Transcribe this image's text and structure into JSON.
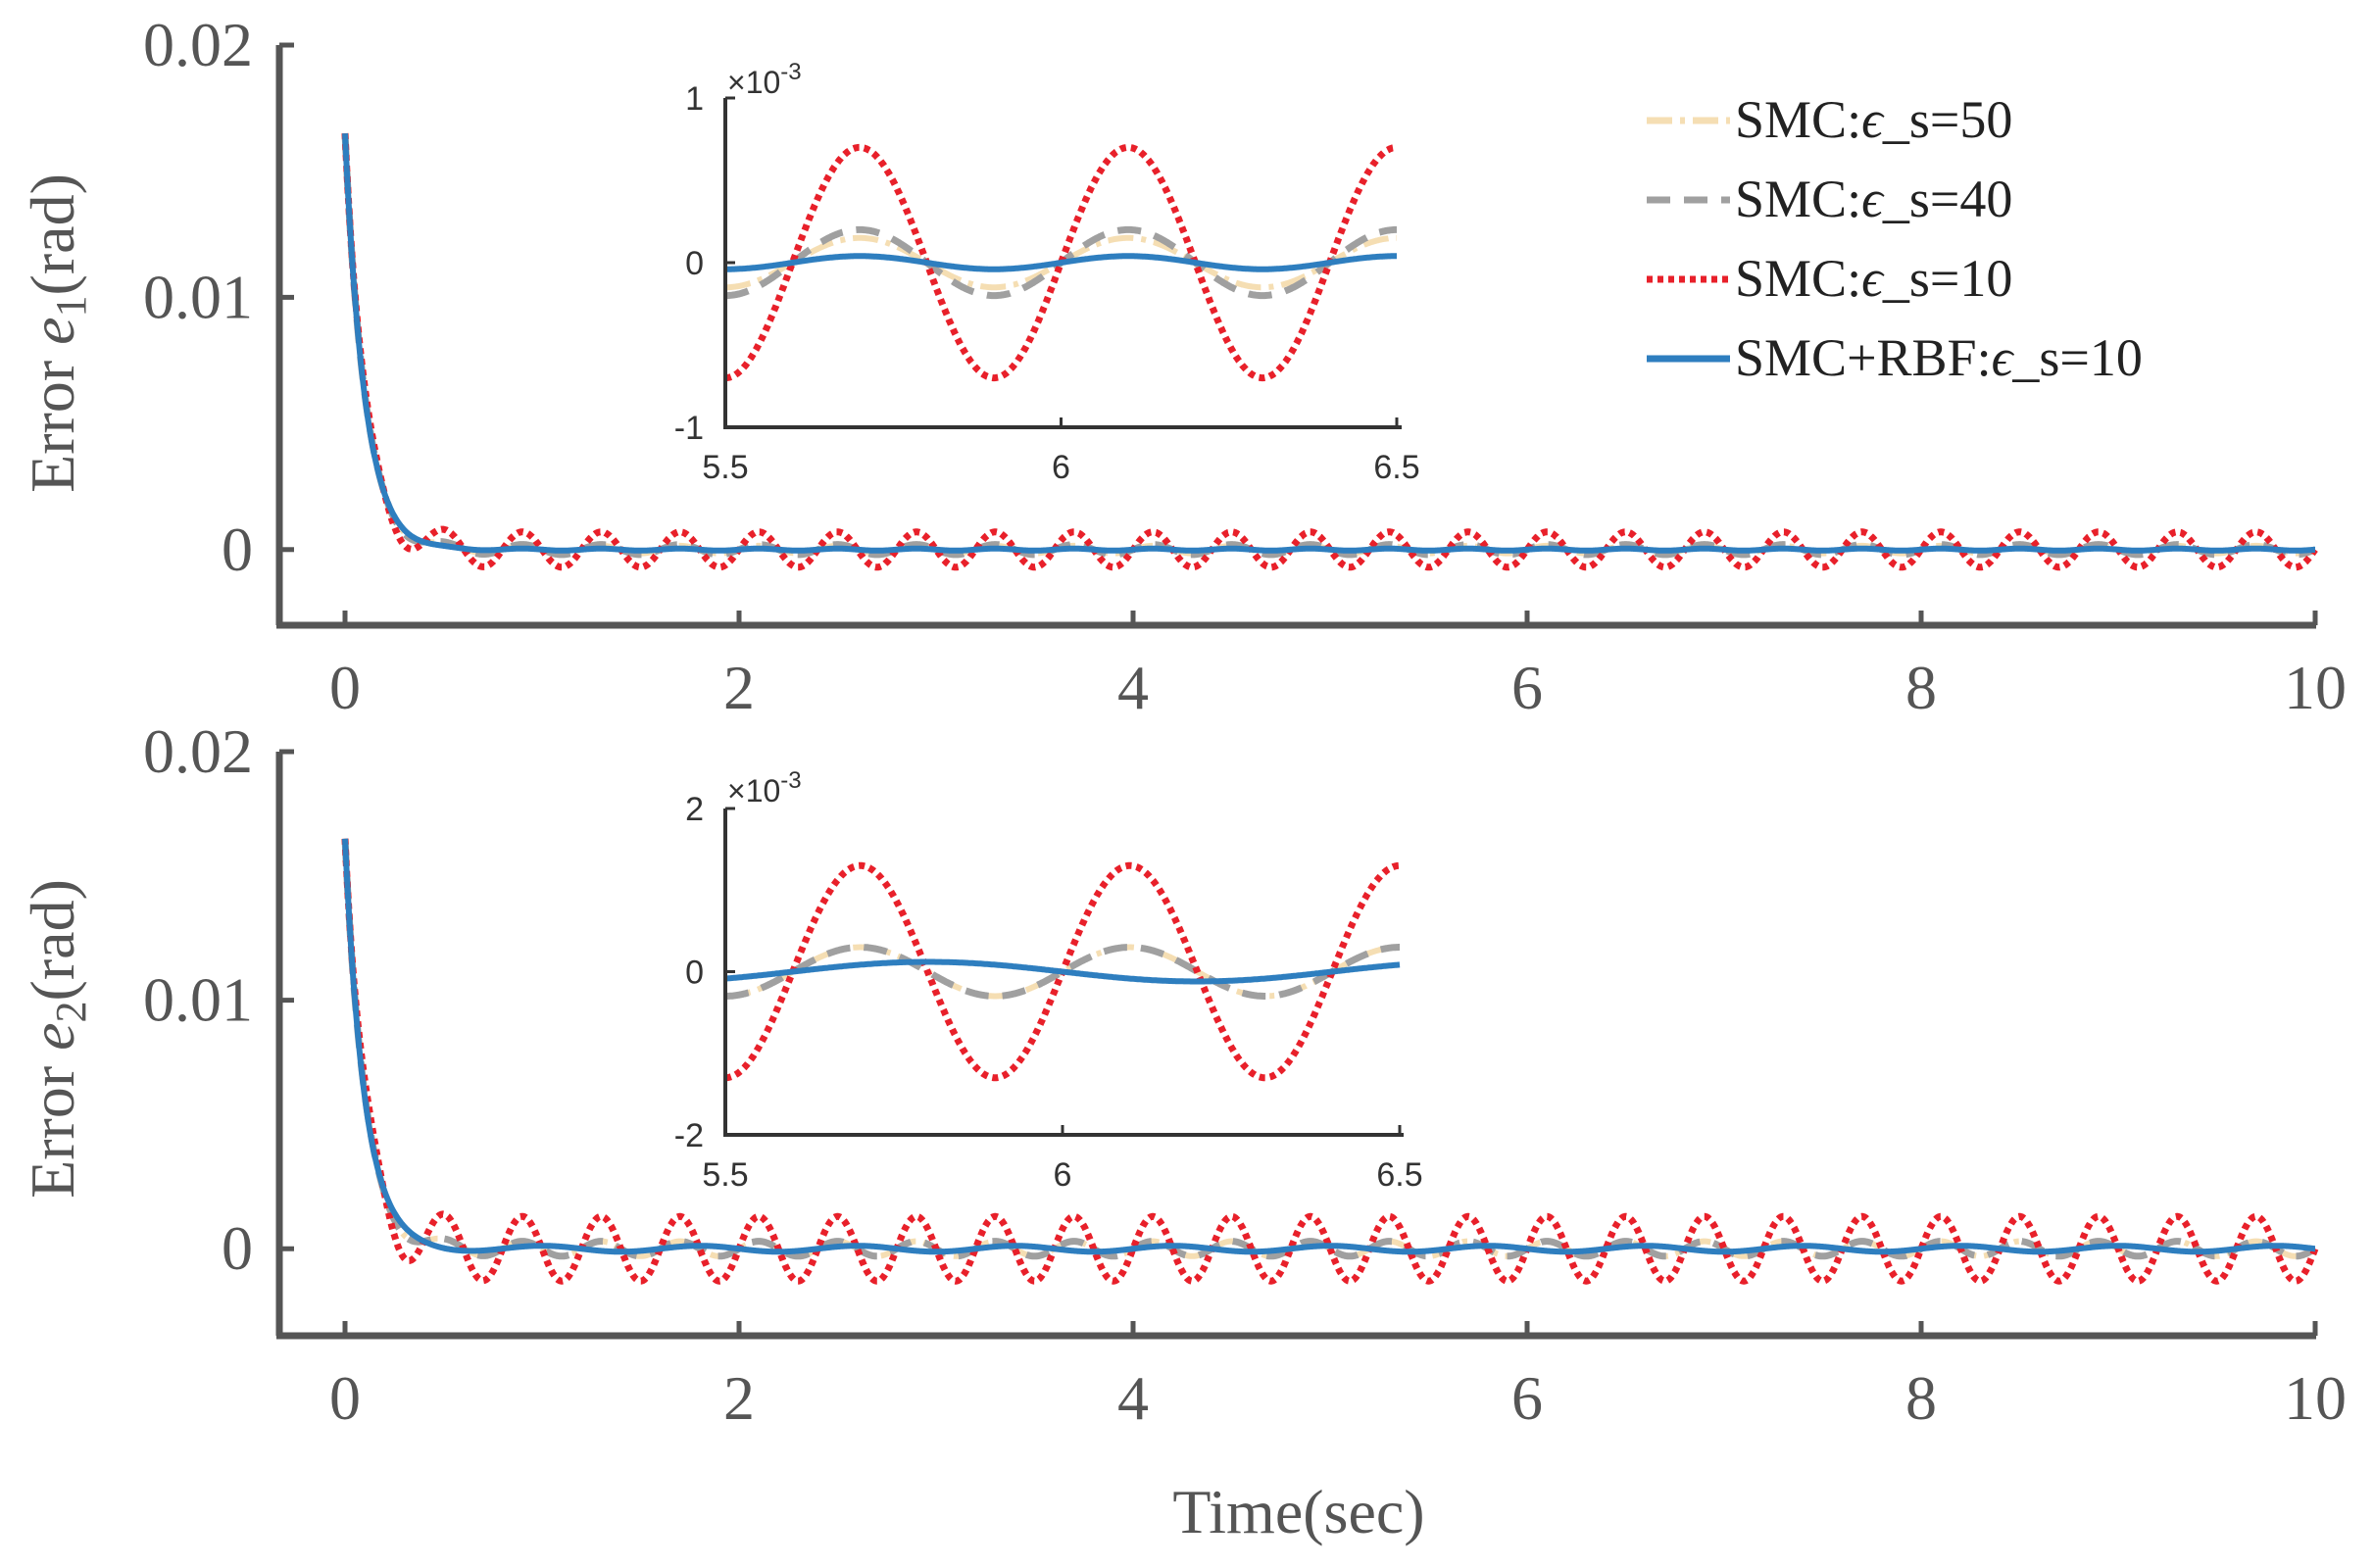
{
  "chart_data": [
    {
      "type": "line",
      "panel": "top",
      "ylabel": "Error e_1(rad)",
      "ylabel_prefix": "Error ",
      "ylabel_var": "e",
      "ylabel_sub": "1",
      "ylabel_unit": "(rad)",
      "xlabel": "",
      "xlim": [
        0,
        10
      ],
      "ylim": [
        -0.003,
        0.02
      ],
      "xticks": [
        "0",
        "2",
        "4",
        "6",
        "8",
        "10"
      ],
      "yticks": [
        "0",
        "0.01",
        "0.02"
      ],
      "grid": false,
      "legend_position": "top-right",
      "series": [
        {
          "name": "SMC:ϵ_s=50",
          "initial_error": 0.0165,
          "decay_time_constant": 0.1,
          "ripple_amplitude": 0.00015,
          "ripple_period": 0.4
        },
        {
          "name": "SMC:ϵ_s=40",
          "initial_error": 0.0165,
          "decay_time_constant": 0.1,
          "ripple_amplitude": 0.0002,
          "ripple_period": 0.4
        },
        {
          "name": "SMC:ϵ_s=10",
          "initial_error": 0.0165,
          "decay_time_constant": 0.1,
          "ripple_amplitude": 0.0007,
          "ripple_period": 0.4
        },
        {
          "name": "SMC+RBF:ϵ_s=10",
          "initial_error": 0.0165,
          "decay_time_constant": 0.1,
          "ripple_amplitude": 4e-05,
          "ripple_period": 0.4
        }
      ],
      "inset": {
        "xlim": [
          5.5,
          6.5
        ],
        "ylim": [
          -1,
          1
        ],
        "xticks": [
          "5.5",
          "6",
          "6.5"
        ],
        "yticks": [
          "-1",
          "0",
          "1"
        ],
        "exponent": "×10^-3",
        "exponent_text": "×10",
        "exponent_power": "-3"
      }
    },
    {
      "type": "line",
      "panel": "bottom",
      "ylabel": "Error e_2(rad)",
      "ylabel_prefix": "Error ",
      "ylabel_var": "e",
      "ylabel_sub": "2",
      "ylabel_unit": "(rad)",
      "xlabel": "Time(sec)",
      "xlim": [
        0,
        10
      ],
      "ylim": [
        -0.0035,
        0.02
      ],
      "xticks": [
        "0",
        "2",
        "4",
        "6",
        "8",
        "10"
      ],
      "yticks": [
        "0",
        "0.01",
        "0.02"
      ],
      "grid": false,
      "series": [
        {
          "name": "SMC:ϵ_s=50",
          "initial_error": 0.0165,
          "decay_time_constant": 0.1,
          "ripple_amplitude": 0.0003,
          "ripple_period": 0.4
        },
        {
          "name": "SMC:ϵ_s=40",
          "initial_error": 0.0165,
          "decay_time_constant": 0.1,
          "ripple_amplitude": 0.0003,
          "ripple_period": 0.4
        },
        {
          "name": "SMC:ϵ_s=10",
          "initial_error": 0.0165,
          "decay_time_constant": 0.1,
          "ripple_amplitude": 0.0013,
          "ripple_period": 0.4
        },
        {
          "name": "SMC+RBF:ϵ_s=10",
          "initial_error": 0.0165,
          "decay_time_constant": 0.1,
          "ripple_amplitude": 0.00012,
          "ripple_period": 0.8
        }
      ],
      "inset": {
        "xlim": [
          5.5,
          6.5
        ],
        "ylim": [
          -2,
          2
        ],
        "xticks": [
          "5.5",
          "6",
          "6.5"
        ],
        "yticks": [
          "-2",
          "0",
          "2"
        ],
        "exponent": "×10^-3",
        "exponent_text": "×10",
        "exponent_power": "-3"
      }
    }
  ],
  "legend": {
    "items": [
      {
        "label": "SMC:ϵ_s=50",
        "prefix": "SMC:",
        "epsilon": "ϵ",
        "suffix": "_s=50",
        "color": "#f5deb3",
        "style": "dashdot"
      },
      {
        "label": "SMC:ϵ_s=40",
        "prefix": "SMC:",
        "epsilon": "ϵ",
        "suffix": "_s=40",
        "color": "#a0a0a0",
        "style": "dashed"
      },
      {
        "label": "SMC:ϵ_s=10",
        "prefix": "SMC:",
        "epsilon": "ϵ",
        "suffix": "_s=10",
        "color": "#e8202a",
        "style": "dotted"
      },
      {
        "label": "SMC+RBF:ϵ_s=10",
        "prefix": "SMC+RBF:",
        "epsilon": "ϵ",
        "suffix": "_s=10",
        "color": "#2e7ebf",
        "style": "solid"
      }
    ]
  },
  "colors": {
    "axis": "#555555",
    "inset_axis": "#333333"
  }
}
